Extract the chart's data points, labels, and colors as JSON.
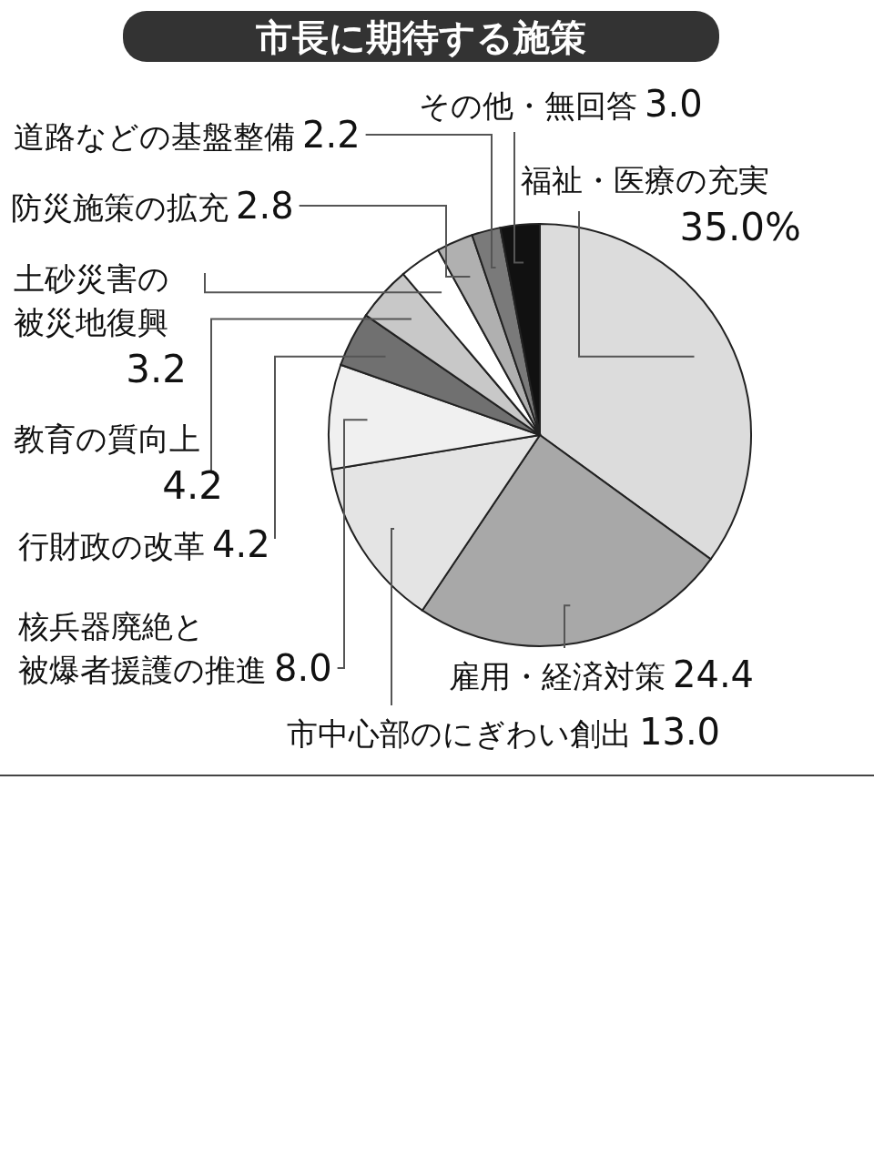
{
  "chart_data": {
    "type": "pie",
    "title": "市長に期待する施策",
    "categories": [
      "福祉・医療の充実",
      "雇用・経済対策",
      "市中心部のにぎわい創出",
      "核兵器廃絶と被爆者援護の推進",
      "行財政の改革",
      "教育の質向上",
      "土砂災害の被災地復興",
      "防災施策の拡充",
      "道路などの基盤整備",
      "その他・無回答"
    ],
    "values": [
      35.0,
      24.4,
      13.0,
      8.0,
      4.2,
      4.2,
      3.2,
      2.8,
      2.2,
      3.0
    ],
    "value_labels": [
      "35.0%",
      "24.4",
      "13.0",
      "8.0",
      "4.2",
      "4.2",
      "3.2",
      "2.8",
      "2.2",
      "3.0"
    ],
    "colors": [
      "#dcdcdc",
      "#a8a8a8",
      "#e4e4e4",
      "#f0f0f0",
      "#707070",
      "#c8c8c8",
      "#ffffff",
      "#b0b0b0",
      "#7a7a7a",
      "#111111"
    ]
  }
}
